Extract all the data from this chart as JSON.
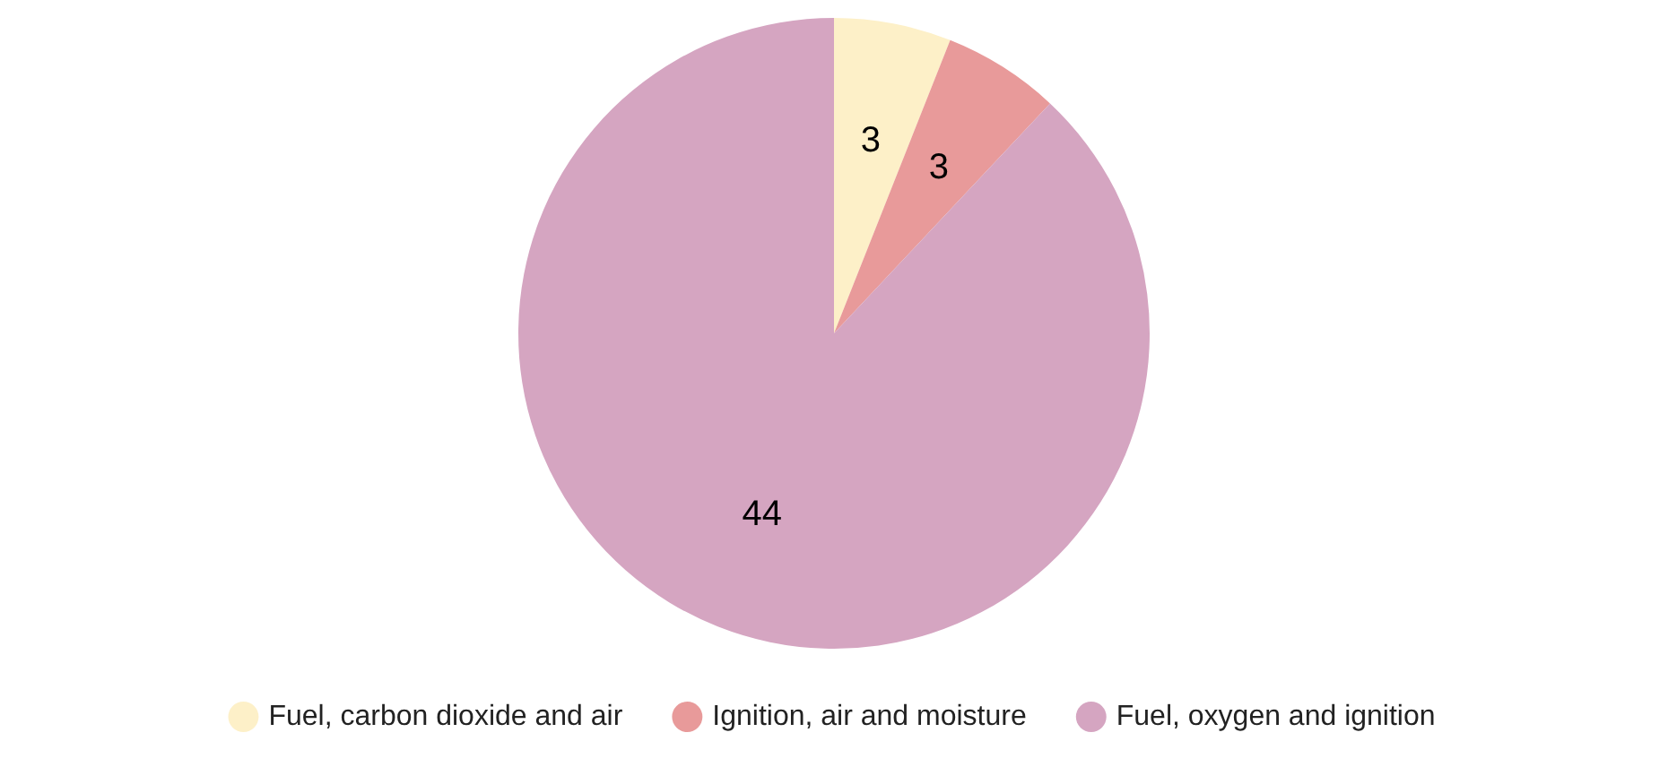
{
  "chart_data": {
    "type": "pie",
    "categories": [
      "Fuel, carbon dioxide and air",
      "Ignition, air and moisture",
      "Fuel, oxygen and ignition"
    ],
    "values": [
      3,
      3,
      44
    ],
    "colors": [
      "#fdf0c8",
      "#e89a9a",
      "#d5a5c1"
    ],
    "data_labels": true,
    "legend": "bottom"
  }
}
